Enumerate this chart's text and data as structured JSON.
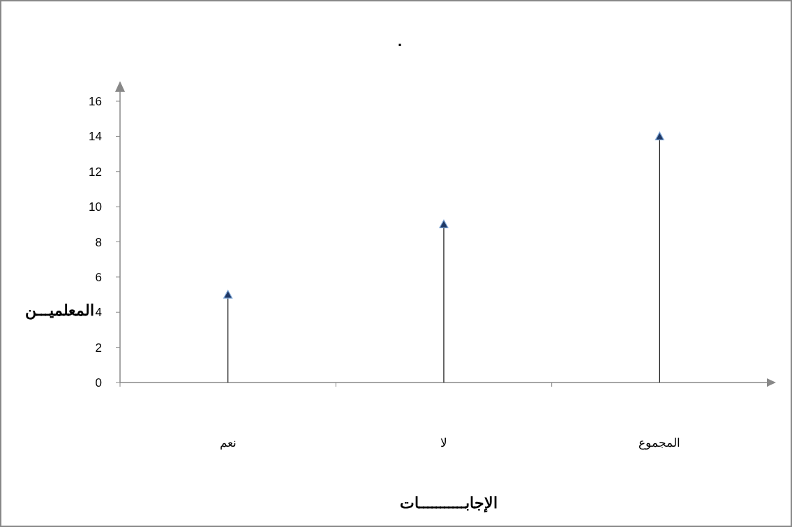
{
  "chart_data": {
    "type": "lollipop",
    "title": ".",
    "categories": [
      "نعم",
      "لا",
      "المجموع"
    ],
    "values": [
      5,
      9,
      14
    ],
    "color": "#1f3864",
    "marker": "triangle",
    "ylim": [
      0,
      16
    ],
    "yticks": [
      0,
      2,
      4,
      6,
      8,
      10,
      12,
      14,
      16
    ],
    "xlabel": "الإجابـــــــــــات",
    "ylabel": "المعلميـــن"
  }
}
